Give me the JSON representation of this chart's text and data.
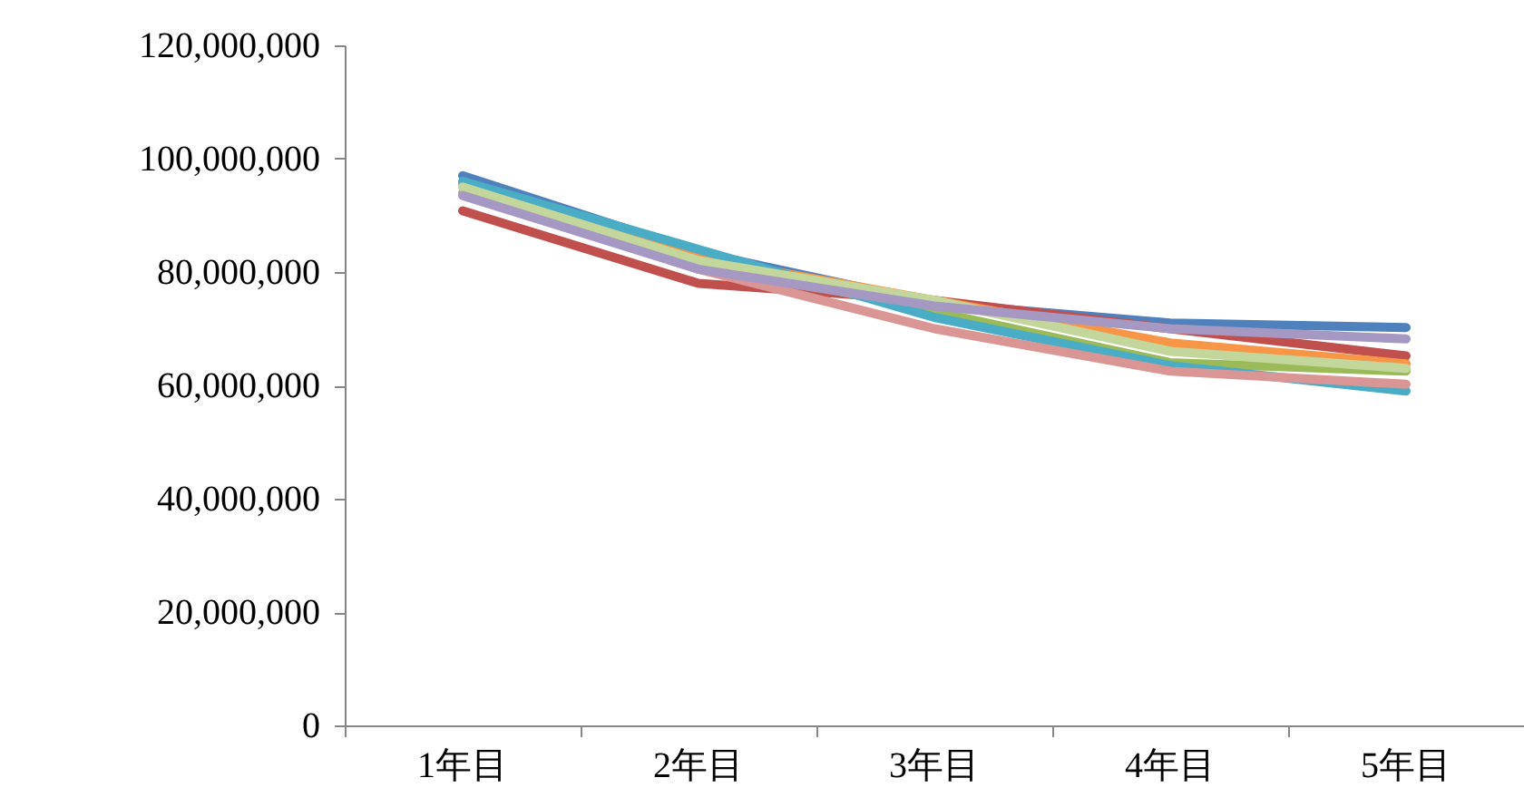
{
  "chart_data": {
    "type": "line",
    "categories": [
      "1年目",
      "2年目",
      "3年目",
      "4年目",
      "5年目"
    ],
    "ylim": [
      0,
      120000000
    ],
    "yticks": [
      0,
      {
        "value": 20000000,
        "label": "20,000,000"
      },
      {
        "value": 40000000,
        "label": "40,000,000"
      },
      {
        "value": 60000000,
        "label": "60,000,000"
      },
      {
        "value": 80000000,
        "label": "80,000,000"
      },
      {
        "value": 100000000,
        "label": "100,000,000"
      },
      {
        "value": 120000000,
        "label": "120,000,000"
      }
    ],
    "grid": false,
    "legend": false,
    "marker": "none",
    "line_style": "solid",
    "series": [
      {
        "color": "#4f81bd",
        "values": [
          97000000,
          83500000,
          74500000,
          71000000,
          70200000
        ]
      },
      {
        "color": "#c0504d",
        "values": [
          90800000,
          78000000,
          75000000,
          70000000,
          65200000
        ]
      },
      {
        "color": "#9bbb59",
        "values": [
          95000000,
          82000000,
          73000000,
          64000000,
          62500000
        ]
      },
      {
        "color": "#f79646",
        "values": [
          95500000,
          82500000,
          75000000,
          67500000,
          63800000
        ]
      },
      {
        "color": "#4bacc6",
        "values": [
          96000000,
          84000000,
          72000000,
          63500000,
          59000000
        ]
      },
      {
        "color": "#d99694",
        "values": [
          94000000,
          80500000,
          70000000,
          62500000,
          60200000
        ]
      },
      {
        "color": "#c3d69b",
        "values": [
          95000000,
          82000000,
          75000000,
          66000000,
          63000000
        ]
      },
      {
        "color": "#a599c4",
        "values": [
          93500000,
          80500000,
          74000000,
          70000000,
          68200000
        ]
      }
    ]
  }
}
